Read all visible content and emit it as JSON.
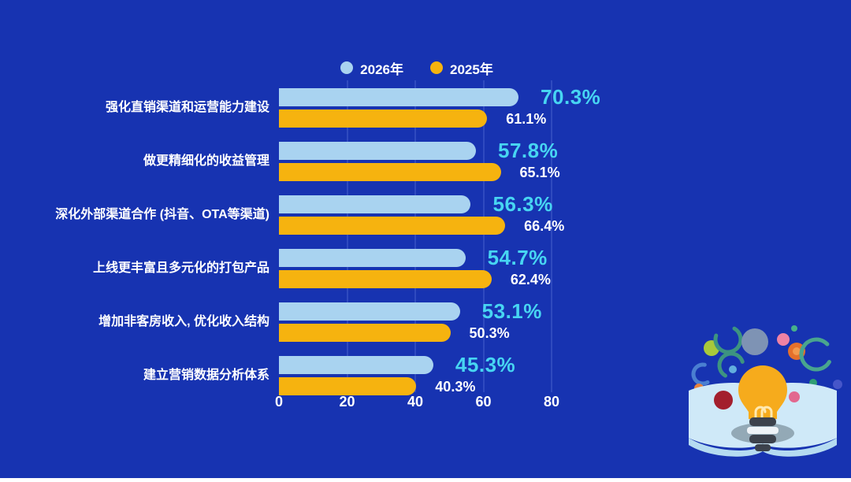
{
  "chart_data": {
    "type": "bar",
    "orientation": "horizontal",
    "title": "",
    "categories": [
      "强化直销渠道和运营能力建设",
      "做更精细化的收益管理",
      "深化外部渠道合作 (抖音、OTA等渠道)",
      "上线更丰富且多元化的打包产品",
      "增加非客房收入, 优化收入结构",
      "建立营销数据分析体系"
    ],
    "series": [
      {
        "name": "2026年",
        "color": "#a9d3f0",
        "values": [
          70.3,
          57.8,
          56.3,
          54.7,
          53.1,
          45.3
        ]
      },
      {
        "name": "2025年",
        "color": "#f6b30f",
        "values": [
          61.1,
          65.1,
          66.4,
          62.4,
          50.3,
          40.3
        ]
      }
    ],
    "value_suffix": "%",
    "xlim": [
      0,
      80
    ],
    "x_ticks": [
      "0",
      "20",
      "40",
      "60",
      "80"
    ],
    "grid": "vertical",
    "legend_position": "top"
  },
  "colors": {
    "background": "#1733b1",
    "bar_2026": "#a9d3f0",
    "bar_2025": "#f6b30f",
    "value_2026_text": "#47d5f2",
    "value_2025_text": "#ffffff",
    "axis_text": "#ffffff",
    "label_text": "#ffffff",
    "gridline": "rgba(160,185,255,0.18)"
  },
  "illustration": {
    "name": "open-book-with-lightbulb-and-colorful-dots"
  }
}
